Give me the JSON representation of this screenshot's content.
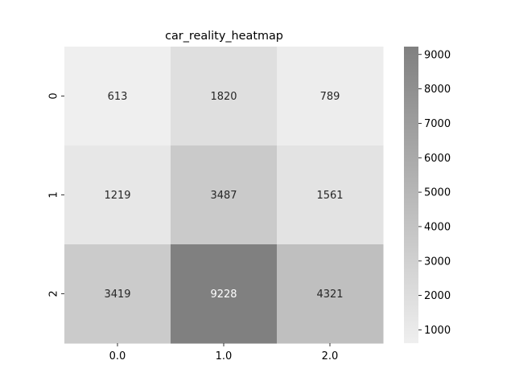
{
  "chart_data": {
    "type": "heatmap",
    "title": "car_reality_heatmap",
    "x_categories": [
      "0.0",
      "1.0",
      "2.0"
    ],
    "y_categories": [
      "0",
      "1",
      "2"
    ],
    "values": [
      [
        613,
        1820,
        789
      ],
      [
        1219,
        3487,
        1561
      ],
      [
        3419,
        9228,
        4321
      ]
    ],
    "colorbar": {
      "min": 613,
      "max": 9228,
      "ticks": [
        1000,
        2000,
        3000,
        4000,
        5000,
        6000,
        7000,
        8000,
        9000
      ]
    },
    "colormap": {
      "low": "#efefef",
      "high": "#808080"
    },
    "legend": "right"
  }
}
